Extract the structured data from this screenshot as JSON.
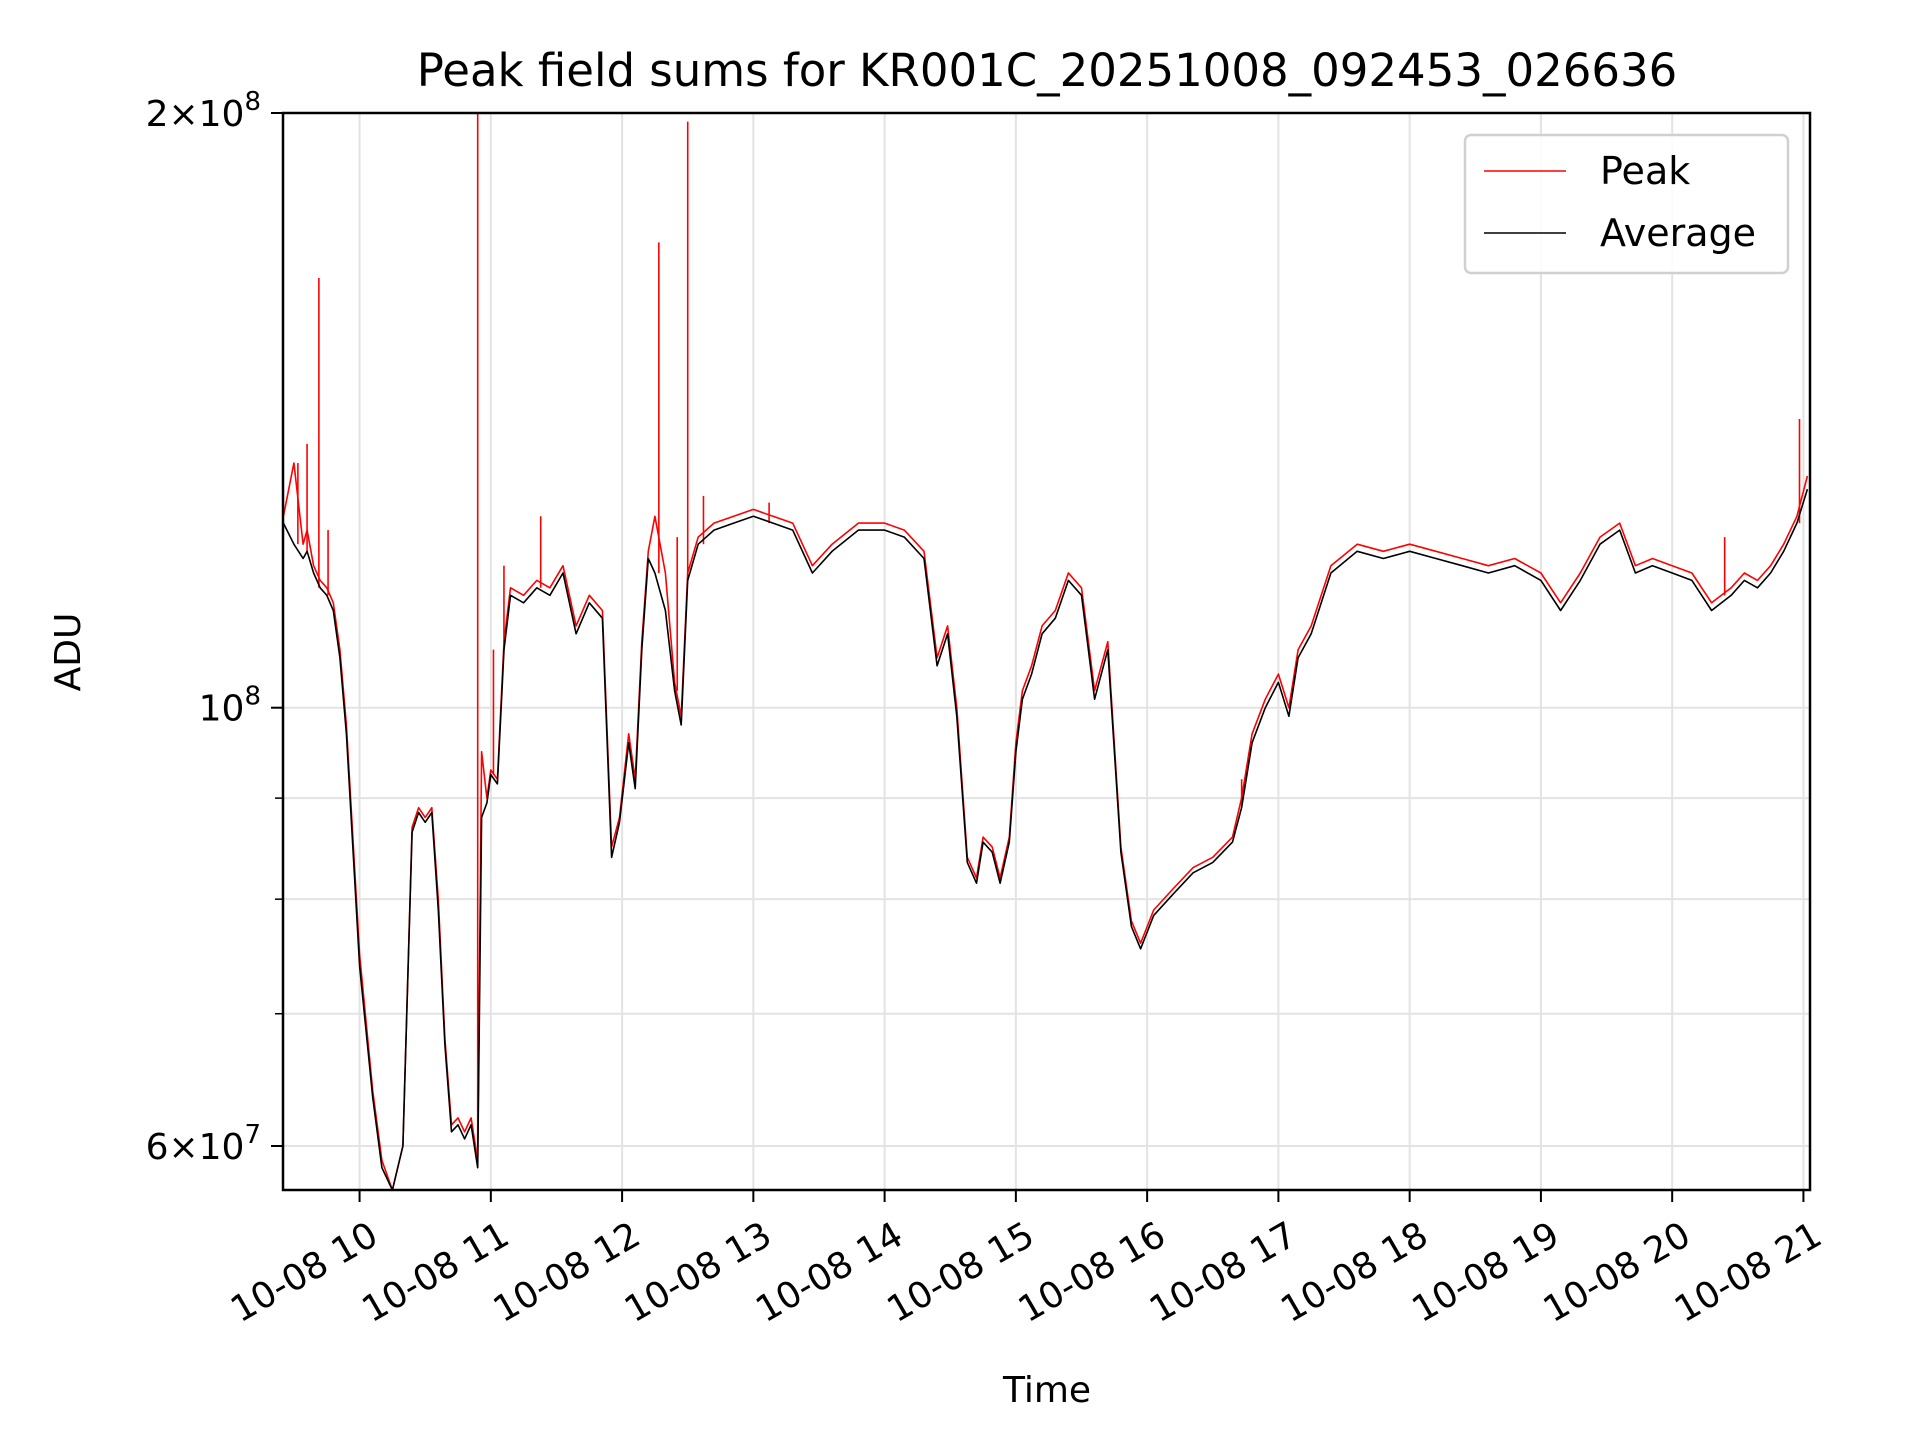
{
  "chart_data": {
    "type": "line",
    "title": "Peak field sums for KR001C_20251008_092453_026636",
    "xlabel": "Time",
    "ylabel": "ADU",
    "yscale": "log",
    "xlim": [
      "2025-10-08 09:25",
      "2025-10-08 21:03"
    ],
    "ylim": [
      57000000,
      200000000
    ],
    "grid": true,
    "legend_position": "top-right",
    "x_ticks": [
      "10-08 10",
      "10-08 11",
      "10-08 12",
      "10-08 13",
      "10-08 14",
      "10-08 15",
      "10-08 16",
      "10-08 17",
      "10-08 18",
      "10-08 19",
      "10-08 20",
      "10-08 21"
    ],
    "y_tick_labels": [
      {
        "value": 200000000,
        "base": "2",
        "exp": "8"
      },
      {
        "value": 100000000,
        "base": "",
        "exp": "8"
      },
      {
        "value": 60000000,
        "base": "6",
        "exp": "7"
      }
    ],
    "y_minor_ticks": [
      70000000,
      80000000,
      90000000
    ],
    "x_unit": "hours",
    "x": [
      9.42,
      9.5,
      9.57,
      9.6,
      9.65,
      9.7,
      9.75,
      9.8,
      9.85,
      9.9,
      10.0,
      10.1,
      10.17,
      10.25,
      10.33,
      10.4,
      10.45,
      10.5,
      10.55,
      10.6,
      10.65,
      10.7,
      10.75,
      10.8,
      10.85,
      10.9,
      10.93,
      10.97,
      11.0,
      11.05,
      11.1,
      11.15,
      11.25,
      11.35,
      11.45,
      11.55,
      11.65,
      11.75,
      11.85,
      11.92,
      11.98,
      12.05,
      12.1,
      12.15,
      12.2,
      12.25,
      12.33,
      12.4,
      12.45,
      12.5,
      12.58,
      12.7,
      12.85,
      13.0,
      13.15,
      13.3,
      13.45,
      13.6,
      13.8,
      14.0,
      14.15,
      14.3,
      14.4,
      14.48,
      14.55,
      14.63,
      14.7,
      14.75,
      14.82,
      14.88,
      14.95,
      15.0,
      15.05,
      15.12,
      15.2,
      15.3,
      15.4,
      15.5,
      15.6,
      15.7,
      15.8,
      15.88,
      15.95,
      16.05,
      16.2,
      16.35,
      16.5,
      16.65,
      16.72,
      16.8,
      16.9,
      17.0,
      17.08,
      17.15,
      17.25,
      17.4,
      17.6,
      17.8,
      18.0,
      18.2,
      18.4,
      18.6,
      18.8,
      19.0,
      19.15,
      19.3,
      19.45,
      19.6,
      19.72,
      19.85,
      20.0,
      20.15,
      20.3,
      20.45,
      20.55,
      20.65,
      20.75,
      20.85,
      20.95,
      21.03
    ],
    "series": [
      {
        "name": "Peak",
        "color": "#ff0000",
        "values": [
          125000000,
          133000000,
          121000000,
          123000000,
          118000000,
          116000000,
          115000000,
          113000000,
          107000000,
          98000000,
          75000000,
          64000000,
          59000000,
          57000000,
          60000000,
          87000000,
          89000000,
          88000000,
          89000000,
          80000000,
          68000000,
          61500000,
          62000000,
          61000000,
          62000000,
          59000000,
          95000000,
          90000000,
          93000000,
          92000000,
          108000000,
          115000000,
          114000000,
          116000000,
          115000000,
          118000000,
          110000000,
          114000000,
          112000000,
          85000000,
          88000000,
          97000000,
          92000000,
          108000000,
          120000000,
          125000000,
          117000000,
          103000000,
          99000000,
          117000000,
          122000000,
          124000000,
          125000000,
          126000000,
          125000000,
          124000000,
          118000000,
          121000000,
          124000000,
          124000000,
          123000000,
          120000000,
          106000000,
          110000000,
          100000000,
          84000000,
          82000000,
          86000000,
          85000000,
          82000000,
          86000000,
          96000000,
          102000000,
          105000000,
          110000000,
          112000000,
          117000000,
          115000000,
          102000000,
          108000000,
          85000000,
          78000000,
          76000000,
          79000000,
          81000000,
          83000000,
          84000000,
          86000000,
          90000000,
          97000000,
          101000000,
          104000000,
          100000000,
          107000000,
          110000000,
          118000000,
          121000000,
          120000000,
          121000000,
          120000000,
          119000000,
          118000000,
          119000000,
          117000000,
          113000000,
          117000000,
          122000000,
          124000000,
          118000000,
          119000000,
          118000000,
          117000000,
          113000000,
          115000000,
          117000000,
          116000000,
          118000000,
          121000000,
          125000000,
          131000000
        ]
      },
      {
        "name": "Average",
        "color": "#000000",
        "values": [
          124000000,
          121000000,
          119000000,
          120000000,
          117000000,
          115000000,
          114000000,
          112000000,
          106000000,
          97000000,
          74000000,
          63500000,
          58500000,
          57000000,
          60000000,
          86500000,
          88500000,
          87500000,
          88500000,
          79000000,
          67500000,
          61000000,
          61500000,
          60500000,
          61500000,
          58500000,
          88000000,
          89500000,
          92500000,
          91500000,
          107000000,
          114000000,
          113000000,
          115000000,
          114000000,
          117000000,
          109000000,
          113000000,
          111000000,
          84000000,
          87500000,
          96000000,
          91000000,
          107000000,
          119000000,
          117000000,
          112000000,
          102000000,
          98000000,
          116000000,
          121000000,
          123000000,
          124000000,
          125000000,
          124000000,
          123000000,
          117000000,
          120000000,
          123000000,
          123000000,
          122000000,
          119000000,
          105000000,
          109000000,
          99000000,
          83500000,
          81500000,
          85500000,
          84500000,
          81500000,
          85500000,
          95000000,
          101000000,
          104000000,
          109000000,
          111000000,
          116000000,
          114000000,
          101000000,
          107000000,
          84500000,
          77500000,
          75500000,
          78500000,
          80500000,
          82500000,
          83500000,
          85500000,
          89000000,
          96000000,
          100000000,
          103000000,
          99000000,
          106000000,
          109000000,
          117000000,
          120000000,
          119000000,
          120000000,
          119000000,
          118000000,
          117000000,
          118000000,
          116000000,
          112000000,
          116000000,
          121000000,
          123000000,
          117000000,
          118000000,
          117000000,
          116000000,
          112000000,
          114000000,
          116000000,
          115000000,
          117000000,
          120000000,
          124000000,
          129000000
        ]
      }
    ],
    "peak_spikes": [
      {
        "x": 9.53,
        "y": 133000000
      },
      {
        "x": 9.6,
        "y": 136000000
      },
      {
        "x": 9.69,
        "y": 165000000
      },
      {
        "x": 9.76,
        "y": 123000000
      },
      {
        "x": 10.9,
        "y": 200000000
      },
      {
        "x": 11.02,
        "y": 107000000
      },
      {
        "x": 11.1,
        "y": 118000000
      },
      {
        "x": 11.38,
        "y": 125000000
      },
      {
        "x": 12.28,
        "y": 172000000
      },
      {
        "x": 12.42,
        "y": 122000000
      },
      {
        "x": 12.5,
        "y": 198000000
      },
      {
        "x": 12.62,
        "y": 128000000
      },
      {
        "x": 13.12,
        "y": 127000000
      },
      {
        "x": 16.72,
        "y": 92000000
      },
      {
        "x": 20.4,
        "y": 122000000
      },
      {
        "x": 20.97,
        "y": 140000000
      }
    ]
  }
}
